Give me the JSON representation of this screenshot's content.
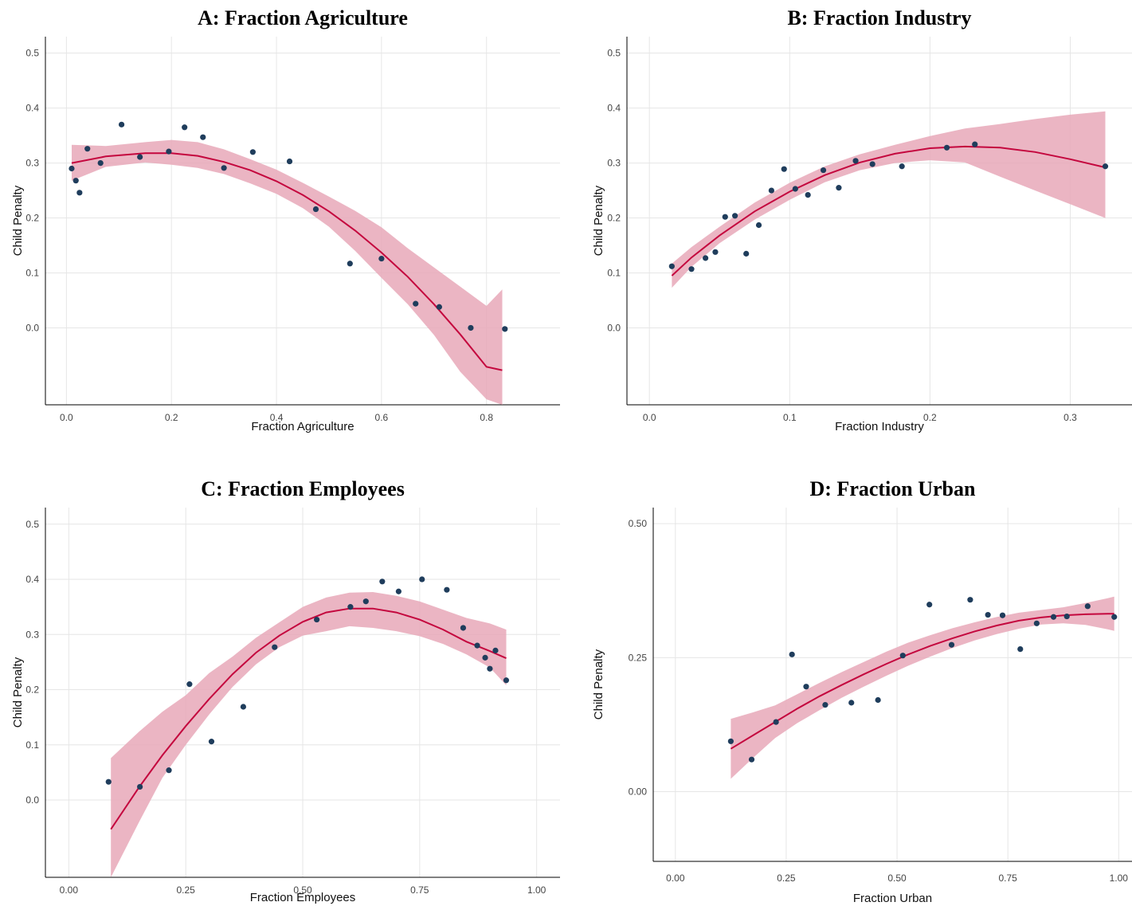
{
  "colors": {
    "points": "#1f3d5c",
    "fit_line": "#c4073e",
    "ci_band": "#e8a8b8",
    "grid": "#e6e6e6"
  },
  "chart_data": [
    {
      "id": "A",
      "type": "scatter",
      "title": "A: Fraction Agriculture",
      "xlabel": "Fraction Agriculture",
      "ylabel": "Child Penalty",
      "xlim": [
        -0.04,
        0.94
      ],
      "ylim": [
        -0.14,
        0.53
      ],
      "xticks": [
        0.0,
        0.2,
        0.4,
        0.6,
        0.8
      ],
      "xtick_labels": [
        "0.0",
        "0.2",
        "0.4",
        "0.6",
        "0.8"
      ],
      "yticks": [
        0.0,
        0.1,
        0.2,
        0.3,
        0.4,
        0.5
      ],
      "ytick_labels": [
        "0.0",
        "0.1",
        "0.2",
        "0.3",
        "0.4",
        "0.5"
      ],
      "grid": true,
      "points": [
        [
          0.01,
          0.29
        ],
        [
          0.018,
          0.268
        ],
        [
          0.025,
          0.246
        ],
        [
          0.04,
          0.326
        ],
        [
          0.065,
          0.3
        ],
        [
          0.105,
          0.37
        ],
        [
          0.14,
          0.311
        ],
        [
          0.195,
          0.321
        ],
        [
          0.225,
          0.365
        ],
        [
          0.26,
          0.347
        ],
        [
          0.3,
          0.291
        ],
        [
          0.355,
          0.32
        ],
        [
          0.425,
          0.303
        ],
        [
          0.475,
          0.216
        ],
        [
          0.54,
          0.117
        ],
        [
          0.6,
          0.126
        ],
        [
          0.665,
          0.044
        ],
        [
          0.71,
          0.038
        ],
        [
          0.77,
          0.0
        ],
        [
          0.835,
          -0.002
        ]
      ],
      "fit": {
        "x": [
          0.01,
          0.075,
          0.15,
          0.2,
          0.25,
          0.3,
          0.35,
          0.4,
          0.45,
          0.5,
          0.55,
          0.6,
          0.65,
          0.7,
          0.75,
          0.8,
          0.83
        ],
        "y": [
          0.3,
          0.312,
          0.318,
          0.318,
          0.313,
          0.302,
          0.287,
          0.267,
          0.242,
          0.212,
          0.177,
          0.137,
          0.093,
          0.043,
          -0.012,
          -0.071,
          -0.077
        ],
        "lower": [
          0.268,
          0.293,
          0.301,
          0.297,
          0.291,
          0.28,
          0.263,
          0.244,
          0.218,
          0.184,
          0.14,
          0.091,
          0.043,
          -0.013,
          -0.08,
          -0.13,
          -0.14
        ],
        "upper": [
          0.333,
          0.331,
          0.338,
          0.342,
          0.338,
          0.325,
          0.307,
          0.288,
          0.264,
          0.239,
          0.213,
          0.183,
          0.145,
          0.11,
          0.075,
          0.04,
          0.07
        ]
      }
    },
    {
      "id": "B",
      "type": "scatter",
      "title": "B: Fraction Industry",
      "xlabel": "Fraction Industry",
      "ylabel": "Child Penalty",
      "xlim": [
        -0.016,
        0.344
      ],
      "ylim": [
        -0.14,
        0.53
      ],
      "xticks": [
        0.0,
        0.1,
        0.2,
        0.3
      ],
      "xtick_labels": [
        "0.0",
        "0.1",
        "0.2",
        "0.3"
      ],
      "yticks": [
        0.0,
        0.1,
        0.2,
        0.3,
        0.4,
        0.5
      ],
      "ytick_labels": [
        "0.0",
        "0.1",
        "0.2",
        "0.3",
        "0.4",
        "0.5"
      ],
      "grid": true,
      "points": [
        [
          0.016,
          0.112
        ],
        [
          0.03,
          0.107
        ],
        [
          0.04,
          0.127
        ],
        [
          0.047,
          0.138
        ],
        [
          0.054,
          0.202
        ],
        [
          0.061,
          0.204
        ],
        [
          0.069,
          0.135
        ],
        [
          0.078,
          0.187
        ],
        [
          0.087,
          0.25
        ],
        [
          0.096,
          0.289
        ],
        [
          0.104,
          0.253
        ],
        [
          0.113,
          0.242
        ],
        [
          0.124,
          0.287
        ],
        [
          0.135,
          0.255
        ],
        [
          0.147,
          0.304
        ],
        [
          0.159,
          0.298
        ],
        [
          0.18,
          0.294
        ],
        [
          0.212,
          0.328
        ],
        [
          0.232,
          0.334
        ],
        [
          0.325,
          0.294
        ]
      ],
      "fit": {
        "x": [
          0.016,
          0.03,
          0.05,
          0.075,
          0.1,
          0.125,
          0.15,
          0.175,
          0.2,
          0.225,
          0.25,
          0.275,
          0.3,
          0.325
        ],
        "y": [
          0.095,
          0.128,
          0.168,
          0.212,
          0.248,
          0.278,
          0.301,
          0.317,
          0.327,
          0.33,
          0.328,
          0.32,
          0.307,
          0.292
        ],
        "lower": [
          0.073,
          0.111,
          0.154,
          0.197,
          0.233,
          0.265,
          0.287,
          0.3,
          0.305,
          0.301,
          0.275,
          0.25,
          0.225,
          0.2
        ],
        "upper": [
          0.117,
          0.147,
          0.184,
          0.228,
          0.264,
          0.294,
          0.316,
          0.333,
          0.349,
          0.363,
          0.371,
          0.38,
          0.388,
          0.394
        ]
      }
    },
    {
      "id": "C",
      "type": "scatter",
      "title": "C: Fraction Employees",
      "xlabel": "Fraction Employees",
      "ylabel": "Child Penalty",
      "xlim": [
        -0.05,
        1.05
      ],
      "ylim": [
        -0.14,
        0.53
      ],
      "xticks": [
        0.0,
        0.25,
        0.5,
        0.75,
        1.0
      ],
      "xtick_labels": [
        "0.00",
        "0.25",
        "0.50",
        "0.75",
        "1.00"
      ],
      "yticks": [
        0.0,
        0.1,
        0.2,
        0.3,
        0.4,
        0.5
      ],
      "ytick_labels": [
        "0.0",
        "0.1",
        "0.2",
        "0.3",
        "0.4",
        "0.5"
      ],
      "grid": true,
      "points": [
        [
          0.085,
          0.033
        ],
        [
          0.152,
          0.024
        ],
        [
          0.214,
          0.054
        ],
        [
          0.258,
          0.21
        ],
        [
          0.305,
          0.106
        ],
        [
          0.373,
          0.169
        ],
        [
          0.44,
          0.277
        ],
        [
          0.53,
          0.327
        ],
        [
          0.602,
          0.35
        ],
        [
          0.635,
          0.36
        ],
        [
          0.67,
          0.396
        ],
        [
          0.705,
          0.378
        ],
        [
          0.755,
          0.4
        ],
        [
          0.808,
          0.381
        ],
        [
          0.843,
          0.312
        ],
        [
          0.873,
          0.28
        ],
        [
          0.89,
          0.258
        ],
        [
          0.9,
          0.238
        ],
        [
          0.912,
          0.271
        ],
        [
          0.935,
          0.217
        ]
      ],
      "fit": {
        "x": [
          0.09,
          0.15,
          0.2,
          0.25,
          0.3,
          0.35,
          0.4,
          0.45,
          0.5,
          0.55,
          0.6,
          0.65,
          0.7,
          0.75,
          0.8,
          0.85,
          0.9,
          0.935
        ],
        "y": [
          -0.053,
          0.023,
          0.081,
          0.134,
          0.183,
          0.228,
          0.267,
          0.298,
          0.323,
          0.34,
          0.347,
          0.347,
          0.34,
          0.327,
          0.309,
          0.287,
          0.27,
          0.257
        ],
        "lower": [
          -0.14,
          -0.04,
          0.04,
          0.1,
          0.155,
          0.205,
          0.246,
          0.277,
          0.298,
          0.306,
          0.315,
          0.312,
          0.306,
          0.297,
          0.283,
          0.264,
          0.24,
          0.208
        ],
        "upper": [
          0.076,
          0.124,
          0.16,
          0.19,
          0.23,
          0.26,
          0.294,
          0.322,
          0.35,
          0.367,
          0.376,
          0.377,
          0.37,
          0.36,
          0.345,
          0.33,
          0.32,
          0.309
        ]
      }
    },
    {
      "id": "D",
      "type": "scatter",
      "title": "D: Fraction Urban",
      "xlabel": "Fraction Urban",
      "ylabel": "Child Penalty",
      "xlim": [
        -0.05,
        1.03
      ],
      "ylim": [
        -0.13,
        0.53
      ],
      "xticks": [
        0.0,
        0.25,
        0.5,
        0.75,
        1.0
      ],
      "xtick_labels": [
        "0.00",
        "0.25",
        "0.50",
        "0.75",
        "1.00"
      ],
      "yticks": [
        0.0,
        0.25,
        0.5
      ],
      "ytick_labels": [
        "0.00",
        "0.25",
        "0.50"
      ],
      "grid": true,
      "points": [
        [
          0.125,
          0.094
        ],
        [
          0.172,
          0.06
        ],
        [
          0.227,
          0.13
        ],
        [
          0.263,
          0.256
        ],
        [
          0.295,
          0.196
        ],
        [
          0.338,
          0.162
        ],
        [
          0.397,
          0.166
        ],
        [
          0.457,
          0.171
        ],
        [
          0.513,
          0.254
        ],
        [
          0.573,
          0.349
        ],
        [
          0.623,
          0.274
        ],
        [
          0.665,
          0.358
        ],
        [
          0.705,
          0.33
        ],
        [
          0.738,
          0.329
        ],
        [
          0.778,
          0.266
        ],
        [
          0.815,
          0.314
        ],
        [
          0.853,
          0.326
        ],
        [
          0.883,
          0.327
        ],
        [
          0.93,
          0.346
        ],
        [
          0.99,
          0.326
        ]
      ],
      "fit": {
        "x": [
          0.125,
          0.175,
          0.225,
          0.275,
          0.325,
          0.375,
          0.425,
          0.475,
          0.525,
          0.575,
          0.625,
          0.675,
          0.725,
          0.775,
          0.825,
          0.875,
          0.925,
          0.975,
          0.99
        ],
        "y": [
          0.08,
          0.105,
          0.13,
          0.155,
          0.178,
          0.199,
          0.219,
          0.238,
          0.256,
          0.272,
          0.286,
          0.299,
          0.31,
          0.319,
          0.325,
          0.329,
          0.331,
          0.332,
          0.332
        ],
        "lower": [
          0.024,
          0.063,
          0.1,
          0.128,
          0.152,
          0.175,
          0.196,
          0.216,
          0.235,
          0.252,
          0.268,
          0.282,
          0.294,
          0.304,
          0.312,
          0.314,
          0.311,
          0.303,
          0.3
        ],
        "upper": [
          0.136,
          0.148,
          0.161,
          0.182,
          0.203,
          0.223,
          0.242,
          0.261,
          0.278,
          0.292,
          0.305,
          0.316,
          0.326,
          0.334,
          0.339,
          0.344,
          0.352,
          0.361,
          0.364
        ]
      }
    }
  ]
}
